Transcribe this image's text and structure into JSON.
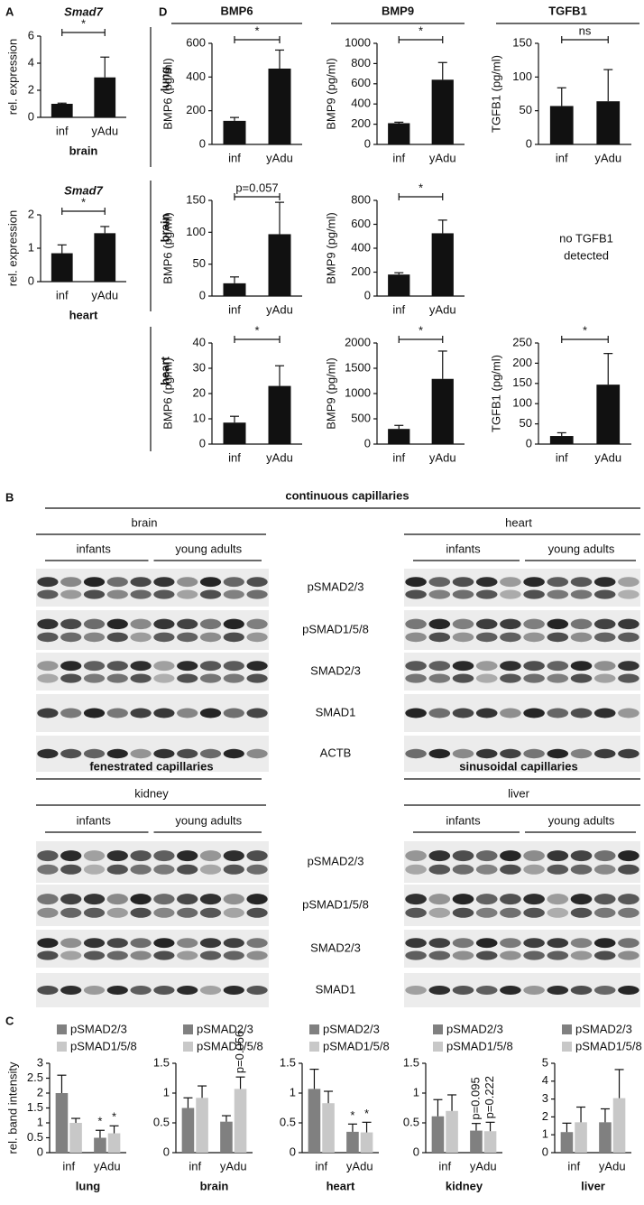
{
  "panel_labels": [
    "A",
    "D",
    "B",
    "C"
  ],
  "panel_d": {
    "columns": [
      "BMP6",
      "BMP9",
      "TGFB1"
    ],
    "rows": [
      "lung",
      "brain",
      "heart"
    ],
    "note": [
      "no TGFB1",
      "detected"
    ]
  },
  "blots": {
    "sections": [
      {
        "title": "continuous capillaries",
        "tissues": [
          {
            "name": "brain",
            "groups": [
              "infants",
              "young adults"
            ]
          },
          {
            "name": "heart",
            "groups": [
              "infants",
              "young adults"
            ]
          }
        ],
        "proteins": [
          "pSMAD2/3",
          "pSMAD1/5/8",
          "SMAD2/3",
          "SMAD1",
          "ACTB"
        ]
      },
      {
        "title": "fenestrated capillaries",
        "tissues": [
          {
            "name": "kidney",
            "groups": [
              "infants",
              "young adults"
            ]
          }
        ],
        "proteins": [
          "pSMAD2/3",
          "pSMAD1/5/8",
          "SMAD2/3",
          "SMAD1"
        ]
      },
      {
        "title": "sinusoidal capillaries",
        "tissues": [
          {
            "name": "liver",
            "groups": [
              "infants",
              "young adults"
            ]
          }
        ]
      }
    ]
  },
  "chart_data": [
    {
      "type": "bar",
      "title": "Smad7",
      "ylabel": "rel. expression",
      "xlabel": "brain",
      "categories": [
        "inf",
        "yAdu"
      ],
      "values": [
        1,
        2.95
      ],
      "errors": [
        0.05,
        1.5
      ],
      "color": "#111111",
      "ylim": [
        0,
        6
      ],
      "yticks": [
        0,
        2,
        4,
        6
      ],
      "annotation": "*"
    },
    {
      "type": "bar",
      "title": "Smad7",
      "ylabel": "rel. expression",
      "xlabel": "heart",
      "categories": [
        "inf",
        "yAdu"
      ],
      "values": [
        0.85,
        1.45
      ],
      "errors": [
        0.25,
        0.2
      ],
      "color": "#111111",
      "ylim": [
        0,
        2
      ],
      "yticks": [
        0,
        1,
        2
      ],
      "annotation": "*"
    },
    {
      "type": "bar",
      "ylabel": "BMP6 (pg/ml)",
      "categories": [
        "inf",
        "yAdu"
      ],
      "values": [
        140,
        450
      ],
      "errors": [
        20,
        110
      ],
      "color": "#111111",
      "ylim": [
        0,
        600
      ],
      "yticks": [
        0,
        200,
        400,
        600
      ],
      "annotation": "*"
    },
    {
      "type": "bar",
      "ylabel": "BMP9 (pg/ml)",
      "categories": [
        "inf",
        "yAdu"
      ],
      "values": [
        210,
        640
      ],
      "errors": [
        10,
        170
      ],
      "color": "#111111",
      "ylim": [
        0,
        1000
      ],
      "yticks": [
        0,
        200,
        400,
        600,
        800,
        1000
      ],
      "annotation": "*"
    },
    {
      "type": "bar",
      "ylabel": "TGFB1 (pg/ml)",
      "categories": [
        "inf",
        "yAdu"
      ],
      "values": [
        57,
        64
      ],
      "errors": [
        27,
        47
      ],
      "color": "#111111",
      "ylim": [
        0,
        150
      ],
      "yticks": [
        0,
        50,
        100,
        150
      ],
      "annotation": "ns"
    },
    {
      "type": "bar",
      "ylabel": "BMP6 (pg/ml)",
      "categories": [
        "inf",
        "yAdu"
      ],
      "values": [
        20,
        97
      ],
      "errors": [
        10,
        50
      ],
      "color": "#111111",
      "ylim": [
        0,
        150
      ],
      "yticks": [
        0,
        50,
        100,
        150
      ],
      "annotation": "p=0.057"
    },
    {
      "type": "bar",
      "ylabel": "BMP9 (pg/ml)",
      "categories": [
        "inf",
        "yAdu"
      ],
      "values": [
        180,
        525
      ],
      "errors": [
        15,
        110
      ],
      "color": "#111111",
      "ylim": [
        0,
        800
      ],
      "yticks": [
        0,
        200,
        400,
        600,
        800
      ],
      "annotation": "*"
    },
    {
      "type": "bar",
      "ylabel": "BMP6 (pg/ml)",
      "categories": [
        "inf",
        "yAdu"
      ],
      "values": [
        8.5,
        23
      ],
      "errors": [
        2.5,
        8
      ],
      "color": "#111111",
      "ylim": [
        0,
        40
      ],
      "yticks": [
        0,
        10,
        20,
        30,
        40
      ],
      "annotation": "*"
    },
    {
      "type": "bar",
      "ylabel": "BMP9 (pg/ml)",
      "categories": [
        "inf",
        "yAdu"
      ],
      "values": [
        300,
        1290
      ],
      "errors": [
        70,
        550
      ],
      "color": "#111111",
      "ylim": [
        0,
        2000
      ],
      "yticks": [
        0,
        500,
        1000,
        1500,
        2000
      ],
      "annotation": "*"
    },
    {
      "type": "bar",
      "ylabel": "TGFB1 (pg/ml)",
      "categories": [
        "inf",
        "yAdu"
      ],
      "values": [
        20,
        147
      ],
      "errors": [
        8,
        77
      ],
      "color": "#111111",
      "ylim": [
        0,
        250
      ],
      "yticks": [
        0,
        50,
        100,
        150,
        200,
        250
      ],
      "annotation": "*"
    },
    {
      "type": "grouped_bar",
      "ylabel": "rel. band intensity",
      "xlabel": "lung",
      "categories": [
        "inf",
        "yAdu"
      ],
      "ylim": [
        0,
        3
      ],
      "yticks": [
        0,
        0.5,
        1,
        1.5,
        2,
        2.5,
        3
      ],
      "series": [
        {
          "name": "pSMAD2/3",
          "color": "#808080",
          "values": [
            2.0,
            0.5
          ],
          "errors": [
            0.6,
            0.25
          ],
          "annotations": [
            null,
            "*"
          ]
        },
        {
          "name": "pSMAD1/5/8",
          "color": "#c8c8c8",
          "values": [
            1.0,
            0.65
          ],
          "errors": [
            0.15,
            0.25
          ],
          "annotations": [
            null,
            "*"
          ]
        }
      ]
    },
    {
      "type": "grouped_bar",
      "xlabel": "brain",
      "categories": [
        "inf",
        "yAdu"
      ],
      "ylim": [
        0,
        1.5
      ],
      "yticks": [
        0,
        0.5,
        1,
        1.5
      ],
      "series": [
        {
          "name": "pSMAD2/3",
          "color": "#808080",
          "values": [
            0.75,
            0.52
          ],
          "errors": [
            0.17,
            0.1
          ],
          "annotations": [
            null,
            null
          ]
        },
        {
          "name": "pSMAD1/5/8",
          "color": "#c8c8c8",
          "values": [
            0.92,
            1.07
          ],
          "errors": [
            0.2,
            0.2
          ],
          "annotations": [
            null,
            "p=0.056"
          ]
        }
      ]
    },
    {
      "type": "grouped_bar",
      "xlabel": "heart",
      "categories": [
        "inf",
        "yAdu"
      ],
      "ylim": [
        0,
        1.5
      ],
      "yticks": [
        0,
        0.5,
        1,
        1.5
      ],
      "series": [
        {
          "name": "pSMAD2/3",
          "color": "#808080",
          "values": [
            1.07,
            0.35
          ],
          "errors": [
            0.33,
            0.13
          ],
          "annotations": [
            null,
            "*"
          ]
        },
        {
          "name": "pSMAD1/5/8",
          "color": "#c8c8c8",
          "values": [
            0.83,
            0.34
          ],
          "errors": [
            0.2,
            0.17
          ],
          "annotations": [
            null,
            "*"
          ]
        }
      ]
    },
    {
      "type": "grouped_bar",
      "xlabel": "kidney",
      "categories": [
        "inf",
        "yAdu"
      ],
      "ylim": [
        0,
        1.5
      ],
      "yticks": [
        0,
        0.5,
        1,
        1.5
      ],
      "series": [
        {
          "name": "pSMAD2/3",
          "color": "#808080",
          "values": [
            0.61,
            0.37
          ],
          "errors": [
            0.28,
            0.12
          ],
          "annotations": [
            null,
            "p=0.095"
          ]
        },
        {
          "name": "pSMAD1/5/8",
          "color": "#c8c8c8",
          "values": [
            0.7,
            0.36
          ],
          "errors": [
            0.27,
            0.15
          ],
          "annotations": [
            null,
            "p=0.222"
          ]
        }
      ]
    },
    {
      "type": "grouped_bar",
      "xlabel": "liver",
      "categories": [
        "inf",
        "yAdu"
      ],
      "ylim": [
        0,
        5
      ],
      "yticks": [
        0,
        1,
        2,
        3,
        4,
        5
      ],
      "series": [
        {
          "name": "pSMAD2/3",
          "color": "#808080",
          "values": [
            1.15,
            1.7
          ],
          "errors": [
            0.5,
            0.75
          ],
          "annotations": [
            null,
            null
          ]
        },
        {
          "name": "pSMAD1/5/8",
          "color": "#c8c8c8",
          "values": [
            1.7,
            3.05
          ],
          "errors": [
            0.85,
            1.6
          ],
          "annotations": [
            null,
            null
          ]
        }
      ]
    }
  ]
}
